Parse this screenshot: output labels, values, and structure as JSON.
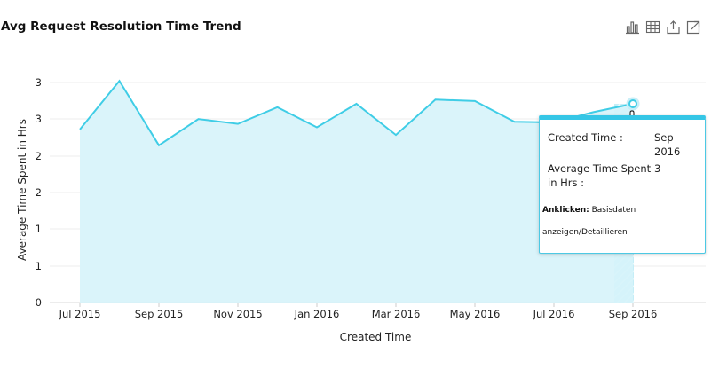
{
  "header": {
    "title": "Avg Request Resolution Time Trend",
    "toolbar": [
      {
        "icon": "bar-chart-icon"
      },
      {
        "icon": "table-grid-icon"
      },
      {
        "icon": "export-icon"
      },
      {
        "icon": "expand-icon"
      }
    ]
  },
  "chart_data": {
    "type": "area",
    "title": "Avg Request Resolution Time Trend",
    "xlabel": "Created Time",
    "ylabel": "Average Time Spent in Hrs",
    "x_ticks": [
      "Jul 2015",
      "Sep 2015",
      "Nov 2015",
      "Jan 2016",
      "Mar 2016",
      "May 2016",
      "Jul 2016",
      "Sep 2016"
    ],
    "y_ticks": [
      "0",
      "1",
      "1",
      "2",
      "2",
      "3",
      "3"
    ],
    "ylim": [
      0,
      3.6
    ],
    "grid": true,
    "color": "#3fcde6",
    "fill_color": "#d6f3f9",
    "x": [
      "2015-07",
      "2015-08",
      "2015-09",
      "2015-10",
      "2015-11",
      "2015-12",
      "2016-01",
      "2016-02",
      "2016-03",
      "2016-04",
      "2016-05",
      "2016-06",
      "2016-07",
      "2016-08",
      "2016-09"
    ],
    "values": [
      2.5,
      3.2,
      2.27,
      2.65,
      2.58,
      2.82,
      2.53,
      2.87,
      2.42,
      2.93,
      2.91,
      2.61,
      2.6,
      2.75,
      2.87
    ],
    "highlight_index": 14
  },
  "tooltip": {
    "label1": "Created Time :",
    "value1": "Sep 2016",
    "label2": "Average Time Spent in Hrs :",
    "value2": "3",
    "footer_bold": "Anklicken:",
    "footer_text": "Basisdaten anzeigen/Detaillieren"
  }
}
